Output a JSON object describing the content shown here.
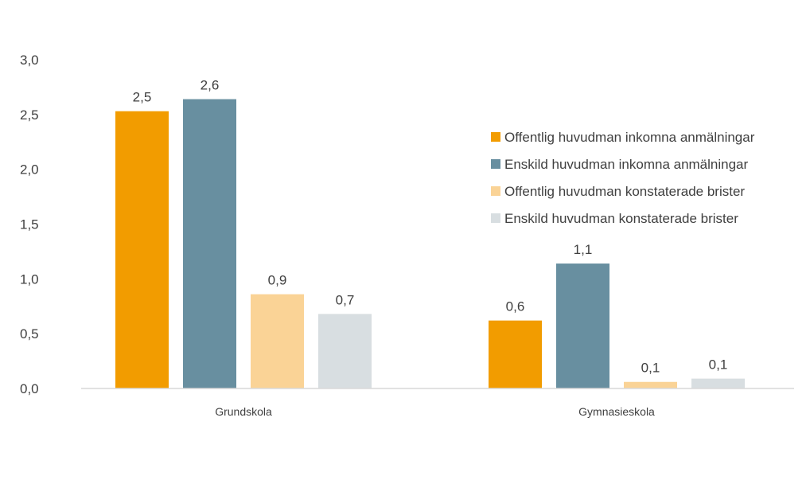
{
  "chart_data": {
    "type": "bar",
    "categories": [
      "Grundskola",
      "Gymnasieskola"
    ],
    "series": [
      {
        "name": "Offentlig huvudman inkomna anmälningar",
        "values": [
          2.53,
          0.62
        ],
        "labels": [
          "2,5",
          "0,6"
        ],
        "color": "#F29C00"
      },
      {
        "name": "Enskild huvudman inkomna anmälningar",
        "values": [
          2.64,
          1.14
        ],
        "labels": [
          "2,6",
          "1,1"
        ],
        "color": "#688FA0"
      },
      {
        "name": "Offentlig huvudman konstaterade brister",
        "values": [
          0.86,
          0.06
        ],
        "labels": [
          "0,9",
          "0,1"
        ],
        "color": "#FAD396"
      },
      {
        "name": "Enskild huvudman konstaterade brister",
        "values": [
          0.68,
          0.09
        ],
        "labels": [
          "0,7",
          "0,1"
        ],
        "color": "#D8DEE1"
      }
    ],
    "yticks": [
      "0,0",
      "0,5",
      "1,0",
      "1,5",
      "2,0",
      "2,5",
      "3,0"
    ],
    "ylim": [
      0,
      3
    ],
    "grid": false,
    "legend_position": "right",
    "axis_color": "#D9D9D9"
  }
}
